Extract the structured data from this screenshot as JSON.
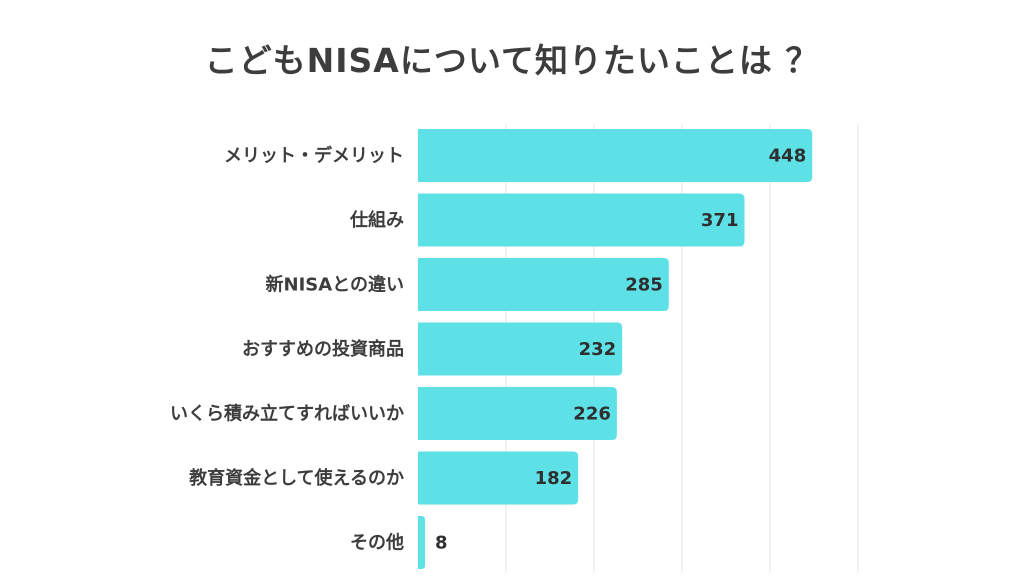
{
  "chart_data": {
    "type": "bar",
    "orientation": "horizontal",
    "title": "こどもNISAについて知りたいことは ？",
    "categories": [
      "メリット・デメリット",
      "仕組み",
      "新NISAとの違い",
      "おすすめの投資商品",
      "いくら積み立てすればいいか",
      "教育資金として使えるのか",
      "その他"
    ],
    "values": [
      448,
      371,
      285,
      232,
      226,
      182,
      8
    ],
    "xlim": [
      0,
      500
    ],
    "grid": true,
    "bar_color": "#5ee1e6",
    "grid_color": "#e6e6e6"
  }
}
